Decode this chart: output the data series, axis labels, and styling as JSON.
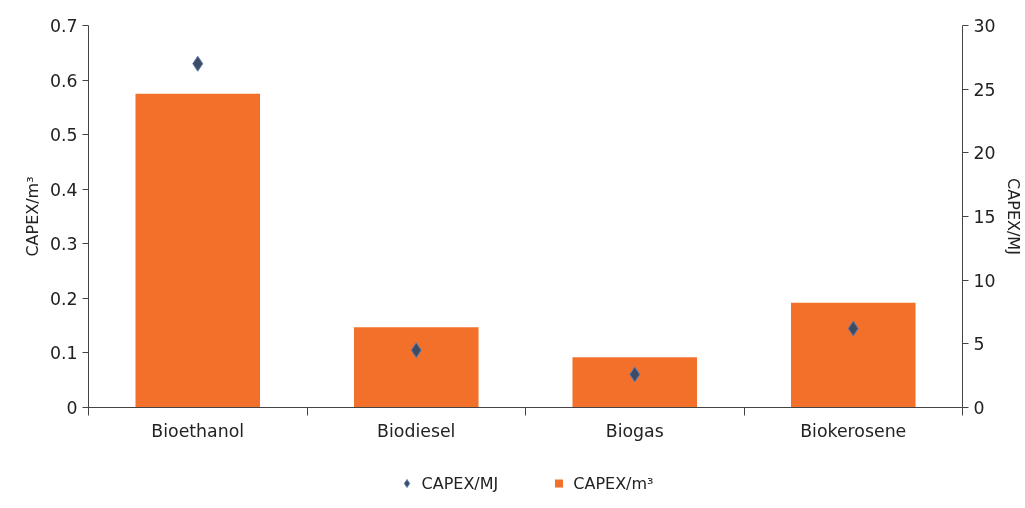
{
  "chart_data": {
    "type": "bar",
    "categories": [
      "Bioethanol",
      "Biodiesel",
      "Biogas",
      "Biokerosene"
    ],
    "ylabel": "CAPEX/m³",
    "y2label": "CAPEX/MJ",
    "series": [
      {
        "name": "CAPEX/MJ",
        "type": "scatter",
        "axis": "y2",
        "marker": "diamond",
        "color": "#3d4b63",
        "values": [
          27.0,
          4.5,
          2.6,
          6.2
        ]
      },
      {
        "name": "CAPEX/m³",
        "type": "bar",
        "color": "#f3702b",
        "values": [
          0.575,
          0.147,
          0.092,
          0.192
        ]
      }
    ],
    "ylim": [
      0,
      0.7
    ],
    "yticks": [
      0,
      0.1,
      0.2,
      0.3,
      0.4,
      0.5,
      0.6,
      0.7
    ],
    "y2lim": [
      0,
      30
    ],
    "y2ticks": [
      0,
      5,
      10,
      15,
      20,
      25,
      30
    ],
    "grid": false,
    "legend": "bottom"
  }
}
